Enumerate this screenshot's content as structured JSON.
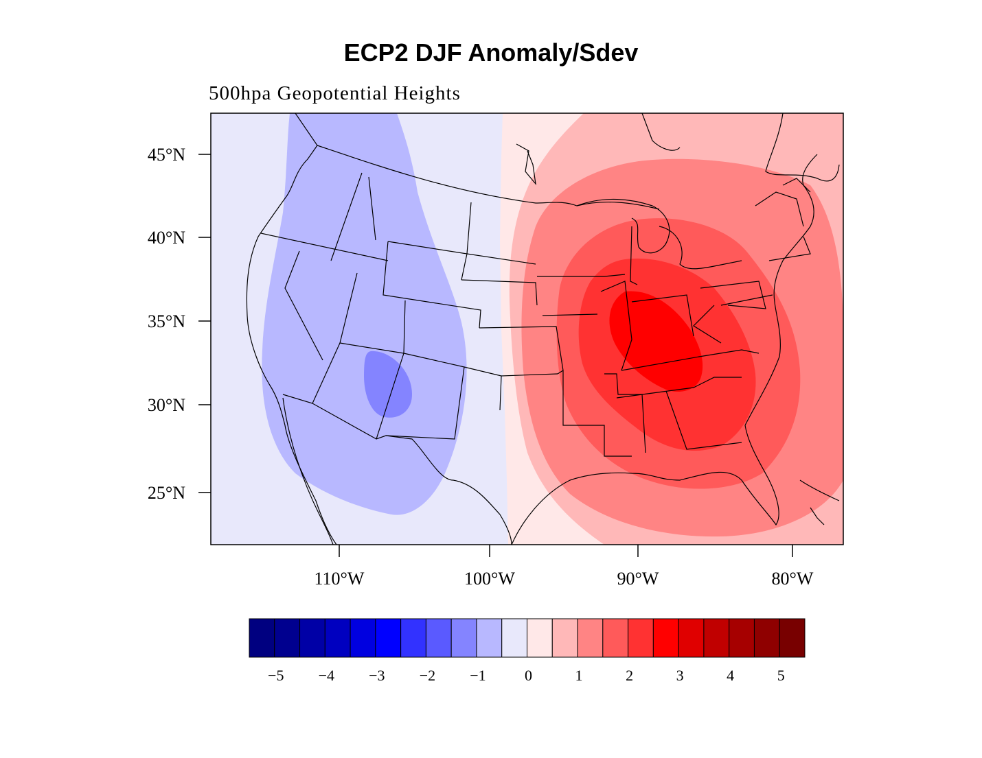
{
  "map": {
    "title": "ECP2 DJF Anomaly/Sdev",
    "subtitle": "500hpa Geopotential Heights",
    "lat_labels": [
      "45°N",
      "40°N",
      "35°N",
      "30°N",
      "25°N"
    ],
    "lon_labels": [
      "110°W",
      "100°W",
      "90°W",
      "80°W"
    ],
    "extent": {
      "lon_min": -118.5,
      "lon_max": -76.5,
      "lat_min": 22.6,
      "lat_max": 47.2
    }
  },
  "colorbar": {
    "colors": [
      "#000080",
      "#00008f",
      "#0000a6",
      "#0000c0",
      "#0000e0",
      "#0000ff",
      "#3232ff",
      "#5a5aff",
      "#8484ff",
      "#b8b8ff",
      "#e8e8fb",
      "#ffe8e8",
      "#ffb8b8",
      "#ff8484",
      "#ff5a5a",
      "#ff3232",
      "#ff0000",
      "#e00000",
      "#c00000",
      "#a60000",
      "#8f0000",
      "#780000"
    ],
    "labels": [
      "−5",
      "−4",
      "−3",
      "−2",
      "−1",
      "0",
      "1",
      "2",
      "3",
      "4",
      "5"
    ]
  }
}
